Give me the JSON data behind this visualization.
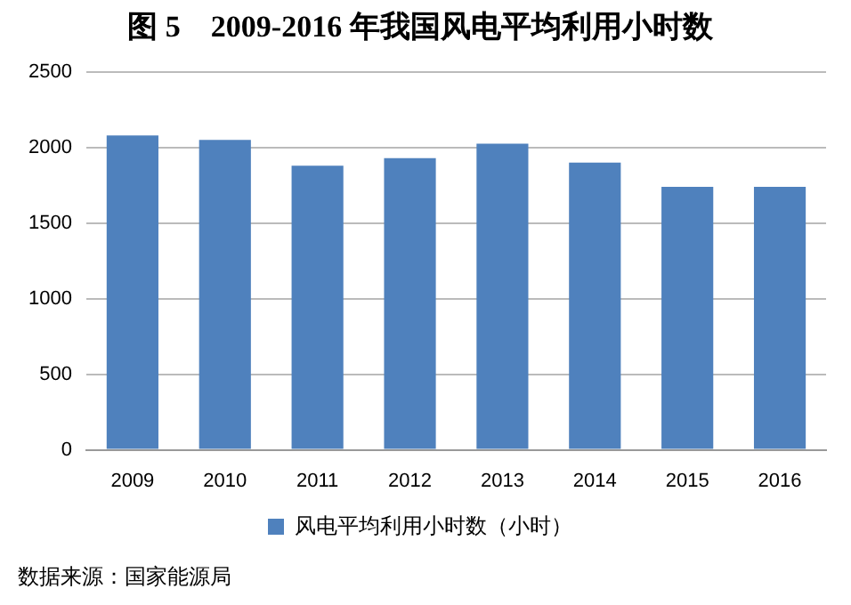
{
  "chart_data": {
    "type": "bar",
    "title": "图 5　2009-2016 年我国风电平均利用小时数",
    "categories": [
      "2009",
      "2010",
      "2011",
      "2012",
      "2013",
      "2014",
      "2015",
      "2016"
    ],
    "series": [
      {
        "name": "风电平均利用小时数（小时）",
        "color": "#4f81bd",
        "values": [
          2080,
          2050,
          1880,
          1930,
          2025,
          1900,
          1740,
          1740
        ]
      }
    ],
    "ylim": [
      0,
      2500
    ],
    "yticks": [
      0,
      500,
      1000,
      1500,
      2000,
      2500
    ],
    "grid": "y",
    "legend": "bottom",
    "annotations": [
      "数据来源：国家能源局"
    ]
  }
}
